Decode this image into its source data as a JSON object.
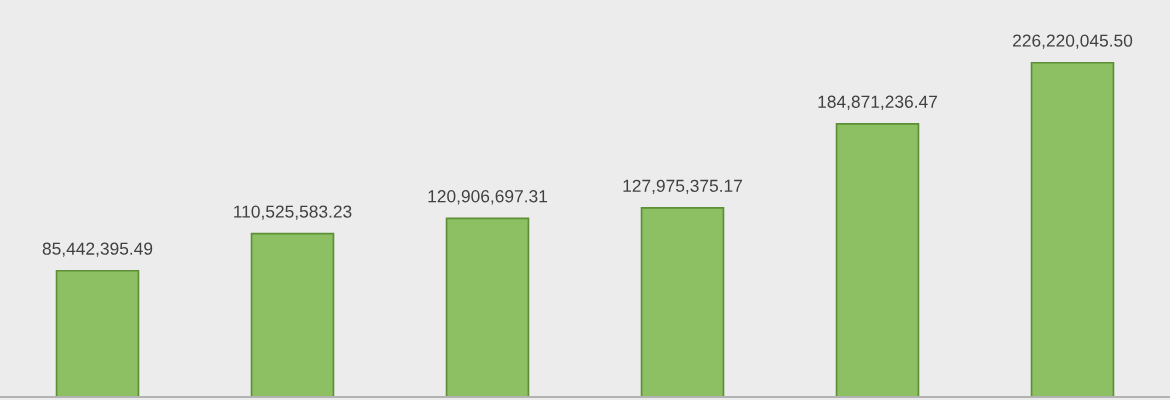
{
  "chart_data": {
    "type": "bar",
    "categories": [
      null,
      null,
      null,
      null,
      null,
      null
    ],
    "values": [
      85442395.49,
      110525583.23,
      120906697.31,
      127975375.17,
      184871236.47,
      226220045.5
    ],
    "value_labels": [
      "85,442,395.49",
      "110,525,583.23",
      "120,906,697.31",
      "127,975,375.17",
      "184,871,236.47",
      "226,220,045.50"
    ],
    "color": "#8cc063",
    "tick_labels": false,
    "grid": false
  }
}
